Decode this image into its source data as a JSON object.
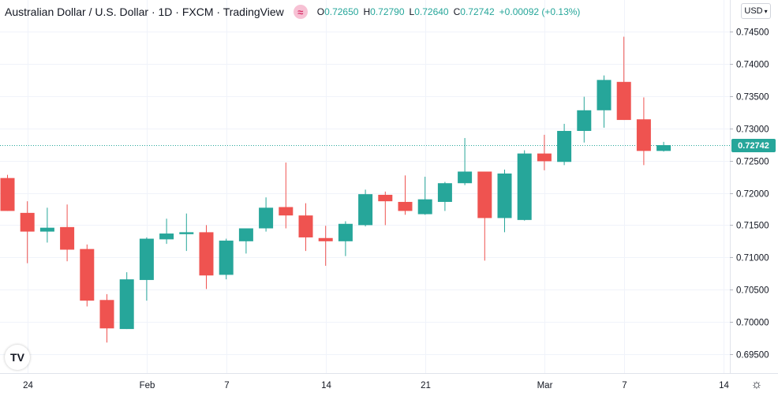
{
  "legend": {
    "symbol_title": "Australian Dollar / U.S. Dollar · 1D · FXCM · TradingView",
    "symbol_icon": "compare-icon",
    "open_label": "O",
    "open": "0.72650",
    "high_label": "H",
    "high": "0.72790",
    "low_label": "L",
    "low": "0.72640",
    "close_label": "C",
    "close": "0.72742",
    "change": "+0.00092 (+0.13%)"
  },
  "currency_selector": {
    "label": "USD",
    "icon": "chevron-down-icon"
  },
  "logo_text": "TV",
  "settings_icon": "gear-icon",
  "current_price_label": "0.72742",
  "colors": {
    "up": "#26a69a",
    "down": "#ef5350",
    "grid": "#f0f3fa",
    "price_line": "#26a69a"
  },
  "chart_data": {
    "type": "candlestick",
    "title": "Australian Dollar / U.S. Dollar · 1D · FXCM",
    "xlabel": "",
    "ylabel": "",
    "ylim": [
      0.692,
      0.7475
    ],
    "yticks": [
      "0.74500",
      "0.74000",
      "0.73500",
      "0.73000",
      "0.72500",
      "0.72000",
      "0.71500",
      "0.71000",
      "0.70500",
      "0.70000",
      "0.69500"
    ],
    "ytick_values": [
      0.745,
      0.74,
      0.735,
      0.73,
      0.725,
      0.72,
      0.715,
      0.71,
      0.705,
      0.7,
      0.695
    ],
    "xtick_labels": [
      {
        "label": "24",
        "index": 1
      },
      {
        "label": "Feb",
        "index": 7
      },
      {
        "label": "7",
        "index": 11
      },
      {
        "label": "14",
        "index": 16
      },
      {
        "label": "21",
        "index": 21
      },
      {
        "label": "Mar",
        "index": 27
      },
      {
        "label": "7",
        "index": 31
      },
      {
        "label": "14",
        "index": 36
      }
    ],
    "x_count": 37,
    "grid": true,
    "last_price": 0.72742,
    "candles": [
      {
        "o": 0.7223,
        "h": 0.7228,
        "l": 0.7172,
        "c": 0.7172
      },
      {
        "o": 0.7169,
        "h": 0.7187,
        "l": 0.7091,
        "c": 0.714
      },
      {
        "o": 0.714,
        "h": 0.7177,
        "l": 0.7123,
        "c": 0.7146
      },
      {
        "o": 0.7147,
        "h": 0.7182,
        "l": 0.7094,
        "c": 0.7112
      },
      {
        "o": 0.7113,
        "h": 0.712,
        "l": 0.7024,
        "c": 0.7033
      },
      {
        "o": 0.7034,
        "h": 0.7043,
        "l": 0.6968,
        "c": 0.699
      },
      {
        "o": 0.6989,
        "h": 0.7077,
        "l": 0.6989,
        "c": 0.7066
      },
      {
        "o": 0.7065,
        "h": 0.7131,
        "l": 0.7033,
        "c": 0.7129
      },
      {
        "o": 0.7128,
        "h": 0.716,
        "l": 0.7121,
        "c": 0.7137
      },
      {
        "o": 0.7136,
        "h": 0.7168,
        "l": 0.711,
        "c": 0.7139
      },
      {
        "o": 0.7139,
        "h": 0.715,
        "l": 0.7051,
        "c": 0.7072
      },
      {
        "o": 0.7073,
        "h": 0.7129,
        "l": 0.7066,
        "c": 0.7126
      },
      {
        "o": 0.7125,
        "h": 0.7145,
        "l": 0.7106,
        "c": 0.7145
      },
      {
        "o": 0.7145,
        "h": 0.7193,
        "l": 0.714,
        "c": 0.7177
      },
      {
        "o": 0.7178,
        "h": 0.7247,
        "l": 0.7145,
        "c": 0.7165
      },
      {
        "o": 0.7165,
        "h": 0.7184,
        "l": 0.711,
        "c": 0.7131
      },
      {
        "o": 0.713,
        "h": 0.7149,
        "l": 0.7087,
        "c": 0.7125
      },
      {
        "o": 0.7125,
        "h": 0.7156,
        "l": 0.7102,
        "c": 0.7152
      },
      {
        "o": 0.715,
        "h": 0.7205,
        "l": 0.7148,
        "c": 0.7198
      },
      {
        "o": 0.7197,
        "h": 0.7202,
        "l": 0.715,
        "c": 0.7187
      },
      {
        "o": 0.7186,
        "h": 0.7227,
        "l": 0.7166,
        "c": 0.7172
      },
      {
        "o": 0.7167,
        "h": 0.7225,
        "l": 0.7166,
        "c": 0.719
      },
      {
        "o": 0.7186,
        "h": 0.7217,
        "l": 0.7172,
        "c": 0.7215
      },
      {
        "o": 0.7215,
        "h": 0.7285,
        "l": 0.7212,
        "c": 0.7233
      },
      {
        "o": 0.7233,
        "h": 0.7233,
        "l": 0.7095,
        "c": 0.7161
      },
      {
        "o": 0.7161,
        "h": 0.7236,
        "l": 0.7139,
        "c": 0.723
      },
      {
        "o": 0.7158,
        "h": 0.7266,
        "l": 0.7157,
        "c": 0.7261
      },
      {
        "o": 0.7261,
        "h": 0.729,
        "l": 0.7235,
        "c": 0.7249
      },
      {
        "o": 0.7248,
        "h": 0.7307,
        "l": 0.7243,
        "c": 0.7296
      },
      {
        "o": 0.7296,
        "h": 0.7349,
        "l": 0.7278,
        "c": 0.7328
      },
      {
        "o": 0.7328,
        "h": 0.7382,
        "l": 0.7301,
        "c": 0.7375
      },
      {
        "o": 0.7372,
        "h": 0.7442,
        "l": 0.7313,
        "c": 0.7313
      },
      {
        "o": 0.7314,
        "h": 0.7348,
        "l": 0.7243,
        "c": 0.7265
      },
      {
        "o": 0.7265,
        "h": 0.7279,
        "l": 0.7264,
        "c": 0.7274
      }
    ]
  }
}
